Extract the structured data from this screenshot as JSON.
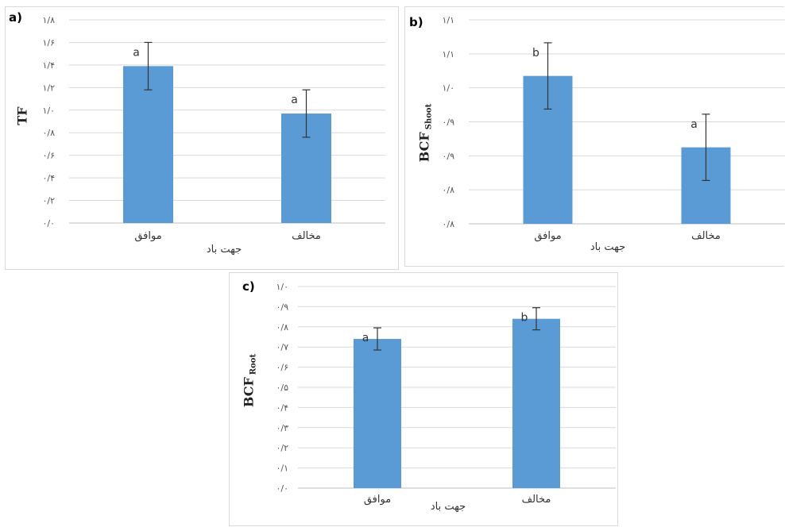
{
  "chart_data": [
    {
      "type": "bar",
      "panel_label": "a)",
      "categories": [
        "موافق",
        "مخالف"
      ],
      "series": [
        {
          "values": [
            1.39,
            0.97
          ],
          "errors": [
            0.21,
            0.21
          ],
          "letters": [
            "a",
            "a"
          ]
        }
      ],
      "ylim": [
        0,
        1.8
      ],
      "yticks": [
        "۰/۰",
        "۰/۲",
        "۰/۴",
        "۰/۶",
        "۰/۸",
        "۱/۰",
        "۱/۲",
        "۱/۴",
        "۱/۶",
        "۱/۸"
      ],
      "ylabel": "TF",
      "ylabel_sub": "",
      "xlabel": "جهت باد",
      "grid": true,
      "bar_color": "#5b9bd5"
    },
    {
      "type": "bar",
      "panel_label": "b)",
      "categories": [
        "موافق",
        "مخالف"
      ],
      "series": [
        {
          "values": [
            1.04,
            0.9
          ],
          "errors": [
            0.065,
            0.065
          ],
          "letters": [
            "b",
            "a"
          ]
        }
      ],
      "ylim": [
        0.75,
        1.15
      ],
      "yticks": [
        "۰/۸",
        "۰/۸",
        "۰/۹",
        "۰/۹",
        "۱/۰",
        "۱/۱",
        "۱/۱"
      ],
      "ylabel": "BCF",
      "ylabel_sub": "Shoot",
      "xlabel": "جهت باد",
      "grid": true,
      "bar_color": "#5b9bd5"
    },
    {
      "type": "bar",
      "panel_label": "c)",
      "categories": [
        "موافق",
        "مخالف"
      ],
      "series": [
        {
          "values": [
            0.74,
            0.84
          ],
          "errors": [
            0.055,
            0.055
          ],
          "letters": [
            "a",
            "b"
          ]
        }
      ],
      "ylim": [
        0,
        1.0
      ],
      "yticks": [
        "۰/۰",
        "۰/۱",
        "۰/۲",
        "۰/۳",
        "۰/۴",
        "۰/۵",
        "۰/۶",
        "۰/۷",
        "۰/۸",
        "۰/۹",
        "۱/۰"
      ],
      "ylabel": "BCF",
      "ylabel_sub": "Root",
      "xlabel": "جهت باد",
      "grid": true,
      "bar_color": "#5b9bd5"
    }
  ]
}
